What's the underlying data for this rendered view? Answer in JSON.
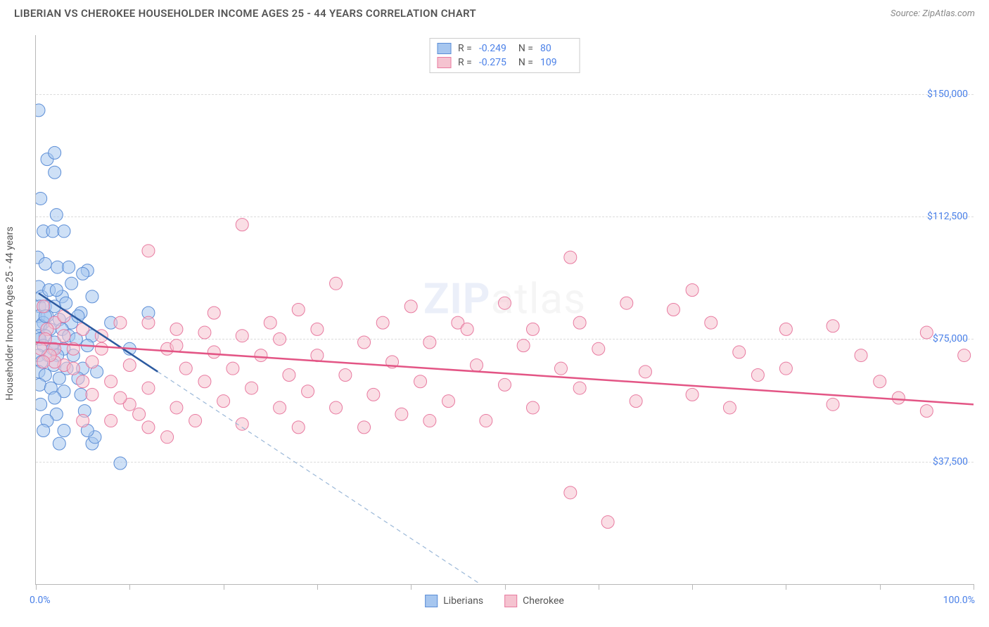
{
  "title": "LIBERIAN VS CHEROKEE HOUSEHOLDER INCOME AGES 25 - 44 YEARS CORRELATION CHART",
  "source": "Source: ZipAtlas.com",
  "y_axis_label": "Householder Income Ages 25 - 44 years",
  "x_axis_start": "0.0%",
  "x_axis_end": "100.0%",
  "watermark_bold": "ZIP",
  "watermark_rest": "atlas",
  "chart": {
    "type": "scatter",
    "xlim": [
      0,
      100
    ],
    "ylim": [
      0,
      168000
    ],
    "y_ticks": [
      37500,
      75000,
      112500,
      150000
    ],
    "y_tick_labels": [
      "$37,500",
      "$75,000",
      "$112,500",
      "$150,000"
    ],
    "x_ticks": [
      0,
      10,
      20,
      30,
      40,
      50,
      60,
      70,
      80,
      90,
      100
    ],
    "grid_color": "#dcdcdc",
    "axis_color": "#b8b8b8",
    "background_color": "#ffffff",
    "tick_label_color": "#4a80e8",
    "axis_label_color": "#555555",
    "marker_radius": 9,
    "marker_opacity": 0.55,
    "series": [
      {
        "name": "Liberians",
        "fill_color": "#a6c6ef",
        "stroke_color": "#5b8dd6",
        "line_color": "#2c5aa0",
        "dash_color": "#9bb8d8",
        "R": "-0.249",
        "N": "80",
        "regression": {
          "x1": 0.3,
          "y1": 89000,
          "x2": 13,
          "y2": 65000
        },
        "points": [
          [
            0.3,
            145000
          ],
          [
            1.2,
            130000
          ],
          [
            2.0,
            132000
          ],
          [
            2.0,
            126000
          ],
          [
            0.5,
            118000
          ],
          [
            0.8,
            108000
          ],
          [
            1.8,
            108000
          ],
          [
            3.0,
            108000
          ],
          [
            2.2,
            113000
          ],
          [
            0.2,
            100000
          ],
          [
            1.0,
            98000
          ],
          [
            2.3,
            97000
          ],
          [
            3.5,
            97000
          ],
          [
            5.5,
            96000
          ],
          [
            0.3,
            91000
          ],
          [
            5.0,
            95000
          ],
          [
            0.6,
            88000
          ],
          [
            1.4,
            90000
          ],
          [
            2.8,
            88000
          ],
          [
            0.4,
            85000
          ],
          [
            1.0,
            85000
          ],
          [
            2.0,
            85000
          ],
          [
            3.2,
            86000
          ],
          [
            4.8,
            83000
          ],
          [
            6.0,
            88000
          ],
          [
            0.3,
            82000
          ],
          [
            1.2,
            82000
          ],
          [
            2.5,
            81000
          ],
          [
            0.8,
            80000
          ],
          [
            3.8,
            80000
          ],
          [
            4.5,
            82000
          ],
          [
            8.0,
            80000
          ],
          [
            0.5,
            79000
          ],
          [
            1.5,
            78000
          ],
          [
            2.8,
            78000
          ],
          [
            0.3,
            76000
          ],
          [
            1.0,
            76000
          ],
          [
            3.5,
            76000
          ],
          [
            6.0,
            76000
          ],
          [
            0.4,
            75000
          ],
          [
            2.0,
            74000
          ],
          [
            4.3,
            75000
          ],
          [
            0.8,
            73000
          ],
          [
            1.8,
            72000
          ],
          [
            3.0,
            72000
          ],
          [
            5.5,
            73000
          ],
          [
            10.0,
            72000
          ],
          [
            12.0,
            83000
          ],
          [
            0.3,
            70000
          ],
          [
            1.3,
            70000
          ],
          [
            2.3,
            70000
          ],
          [
            4.0,
            70000
          ],
          [
            0.6,
            68000
          ],
          [
            1.9,
            67000
          ],
          [
            3.3,
            66000
          ],
          [
            5.0,
            66000
          ],
          [
            0.3,
            65000
          ],
          [
            1.0,
            64000
          ],
          [
            2.5,
            63000
          ],
          [
            4.5,
            63000
          ],
          [
            6.5,
            65000
          ],
          [
            0.4,
            61000
          ],
          [
            1.6,
            60000
          ],
          [
            3.0,
            59000
          ],
          [
            2.0,
            57000
          ],
          [
            4.8,
            58000
          ],
          [
            0.5,
            55000
          ],
          [
            2.2,
            52000
          ],
          [
            5.2,
            53000
          ],
          [
            1.2,
            50000
          ],
          [
            0.8,
            47000
          ],
          [
            3.0,
            47000
          ],
          [
            2.5,
            43000
          ],
          [
            6.0,
            43000
          ],
          [
            6.3,
            45000
          ],
          [
            5.5,
            47000
          ],
          [
            9.0,
            37000
          ],
          [
            1.0,
            82000
          ],
          [
            2.2,
            90000
          ],
          [
            3.8,
            92000
          ]
        ]
      },
      {
        "name": "Cherokee",
        "fill_color": "#f5c3d0",
        "stroke_color": "#e87aa0",
        "line_color": "#e35585",
        "R": "-0.275",
        "N": "109",
        "regression": {
          "x1": 0,
          "y1": 74000,
          "x2": 100,
          "y2": 55000
        },
        "points": [
          [
            22,
            110000
          ],
          [
            57,
            100000
          ],
          [
            12,
            102000
          ],
          [
            70,
            90000
          ],
          [
            32,
            92000
          ],
          [
            63,
            86000
          ],
          [
            85,
            79000
          ],
          [
            68,
            84000
          ],
          [
            50,
            86000
          ],
          [
            40,
            85000
          ],
          [
            28,
            84000
          ],
          [
            45,
            80000
          ],
          [
            58,
            80000
          ],
          [
            72,
            80000
          ],
          [
            80,
            78000
          ],
          [
            95,
            77000
          ],
          [
            12,
            80000
          ],
          [
            15,
            78000
          ],
          [
            18,
            77000
          ],
          [
            22,
            76000
          ],
          [
            26,
            75000
          ],
          [
            5,
            78000
          ],
          [
            7,
            76000
          ],
          [
            9,
            80000
          ],
          [
            3,
            76000
          ],
          [
            2,
            80000
          ],
          [
            0.8,
            85000
          ],
          [
            1.2,
            78000
          ],
          [
            35,
            74000
          ],
          [
            42,
            74000
          ],
          [
            52,
            73000
          ],
          [
            60,
            72000
          ],
          [
            75,
            71000
          ],
          [
            88,
            70000
          ],
          [
            99,
            70000
          ],
          [
            14,
            72000
          ],
          [
            19,
            71000
          ],
          [
            24,
            70000
          ],
          [
            30,
            70000
          ],
          [
            7,
            72000
          ],
          [
            4,
            72000
          ],
          [
            2,
            72000
          ],
          [
            38,
            68000
          ],
          [
            47,
            67000
          ],
          [
            56,
            66000
          ],
          [
            65,
            65000
          ],
          [
            77,
            64000
          ],
          [
            90,
            62000
          ],
          [
            16,
            66000
          ],
          [
            21,
            66000
          ],
          [
            27,
            64000
          ],
          [
            33,
            64000
          ],
          [
            10,
            67000
          ],
          [
            6,
            68000
          ],
          [
            3,
            67000
          ],
          [
            41,
            62000
          ],
          [
            50,
            61000
          ],
          [
            58,
            60000
          ],
          [
            70,
            58000
          ],
          [
            80,
            66000
          ],
          [
            92,
            57000
          ],
          [
            18,
            62000
          ],
          [
            23,
            60000
          ],
          [
            29,
            59000
          ],
          [
            36,
            58000
          ],
          [
            12,
            60000
          ],
          [
            8,
            62000
          ],
          [
            5,
            62000
          ],
          [
            44,
            56000
          ],
          [
            53,
            54000
          ],
          [
            64,
            56000
          ],
          [
            74,
            54000
          ],
          [
            85,
            55000
          ],
          [
            95,
            53000
          ],
          [
            20,
            56000
          ],
          [
            26,
            54000
          ],
          [
            32,
            54000
          ],
          [
            39,
            52000
          ],
          [
            15,
            54000
          ],
          [
            10,
            55000
          ],
          [
            48,
            50000
          ],
          [
            42,
            50000
          ],
          [
            35,
            48000
          ],
          [
            28,
            48000
          ],
          [
            22,
            49000
          ],
          [
            17,
            50000
          ],
          [
            12,
            48000
          ],
          [
            8,
            50000
          ],
          [
            5,
            50000
          ],
          [
            57,
            28000
          ],
          [
            61,
            19000
          ],
          [
            2,
            68000
          ],
          [
            3,
            82000
          ],
          [
            1,
            75000
          ],
          [
            1.5,
            70000
          ],
          [
            0.5,
            72000
          ],
          [
            0.8,
            68000
          ],
          [
            4,
            66000
          ],
          [
            6,
            58000
          ],
          [
            9,
            57000
          ],
          [
            11,
            52000
          ],
          [
            14,
            45000
          ],
          [
            46,
            78000
          ],
          [
            53,
            78000
          ],
          [
            37,
            80000
          ],
          [
            30,
            78000
          ],
          [
            25,
            80000
          ],
          [
            19,
            83000
          ],
          [
            15,
            73000
          ]
        ]
      }
    ]
  }
}
